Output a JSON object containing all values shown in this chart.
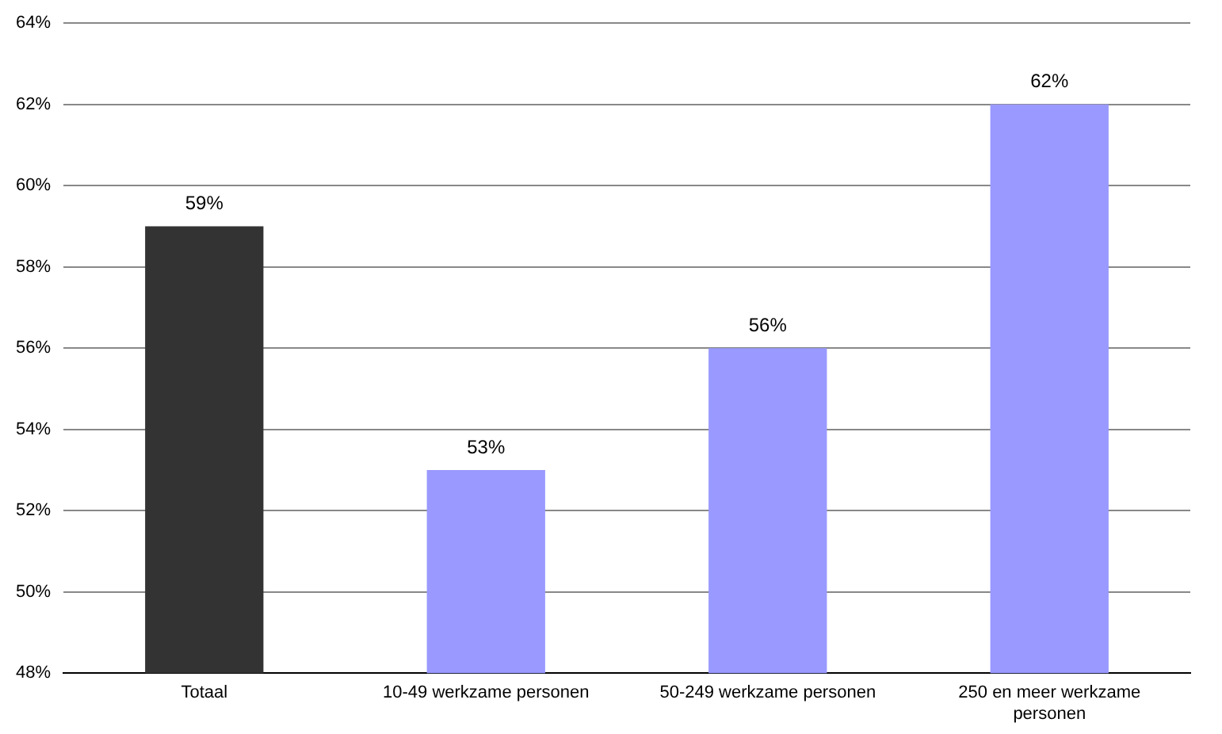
{
  "chart_data": {
    "type": "bar",
    "categories": [
      "Totaal",
      "10-49 werkzame personen",
      "50-249 werkzame personen",
      "250 en meer werkzame personen"
    ],
    "values": [
      59,
      53,
      56,
      62
    ],
    "colors": [
      "#333333",
      "#9999ff",
      "#9999ff",
      "#9999ff"
    ],
    "value_labels": [
      "59%",
      "53%",
      "56%",
      "62%"
    ],
    "ylim": [
      48,
      64
    ],
    "yticks": [
      {
        "value": 48,
        "label": "48%"
      },
      {
        "value": 50,
        "label": "50%"
      },
      {
        "value": 52,
        "label": "52%"
      },
      {
        "value": 54,
        "label": "54%"
      },
      {
        "value": 56,
        "label": "56%"
      },
      {
        "value": 58,
        "label": "58%"
      },
      {
        "value": 60,
        "label": "60%"
      },
      {
        "value": 62,
        "label": "62%"
      },
      {
        "value": 64,
        "label": "64%"
      }
    ],
    "grid": "y",
    "legend": false
  }
}
